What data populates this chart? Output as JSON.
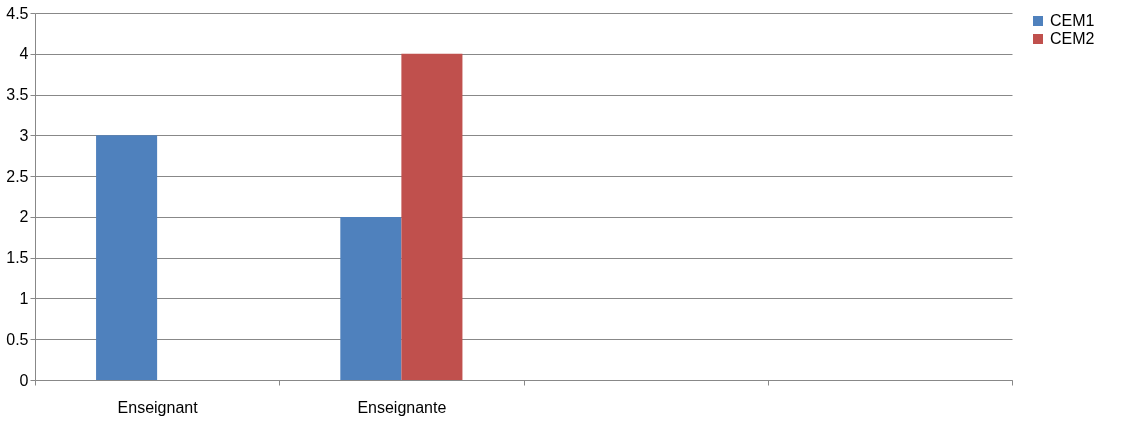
{
  "chart_data": {
    "type": "bar",
    "categories": [
      "Enseignant",
      "Enseignante",
      null,
      null
    ],
    "series": [
      {
        "name": "CEM1",
        "color": "#4f81bd",
        "values": [
          3,
          2,
          null,
          null
        ]
      },
      {
        "name": "CEM2",
        "color": "#c0504d",
        "values": [
          null,
          4,
          null,
          null
        ]
      }
    ],
    "ylim": [
      0,
      4.5
    ],
    "yticks": [
      0,
      0.5,
      1,
      1.5,
      2,
      2.5,
      3,
      3.5,
      4,
      4.5
    ],
    "grid": "y",
    "legend": "right"
  }
}
